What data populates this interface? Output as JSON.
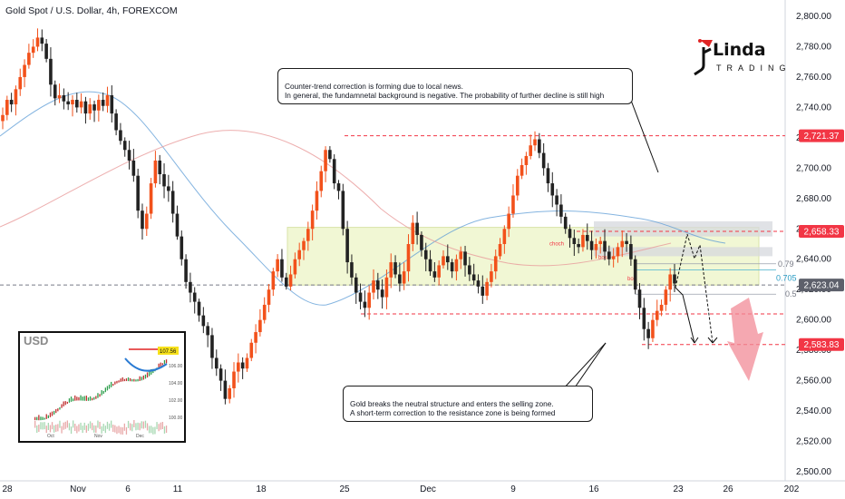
{
  "symbol_title": "Gold Spot / U.S. Dollar, 4h, FOREXCOM",
  "colors": {
    "up": "#f2511b",
    "down": "#222222",
    "ma_blue": "#5b9bd5",
    "ma_red": "#e89b9b",
    "resistance_zone": "#f1f7d4",
    "tag_red": "#f23645",
    "tag_gray": "#5d606b",
    "arrow_pink": "#f28b97"
  },
  "price_axis": {
    "ticks": [
      "2,800.00",
      "2,780.00",
      "2,760.00",
      "2,740.00",
      "2,720.00",
      "2,700.00",
      "2,680.00",
      "2,660.00",
      "2,640.00",
      "2,620.00",
      "2,600.00",
      "2,580.00",
      "2,560.00",
      "2,540.00",
      "2,520.00",
      "2,500.00"
    ],
    "tags": [
      {
        "label": "2,721.37",
        "value": 2721.37,
        "style": "red"
      },
      {
        "label": "2,658.33",
        "value": 2658.33,
        "style": "red"
      },
      {
        "label": "2,623.04",
        "value": 2623.04,
        "style": "gray"
      },
      {
        "label": "2,583.83",
        "value": 2583.83,
        "style": "red"
      }
    ]
  },
  "time_axis": {
    "ticks": [
      "28",
      "Nov",
      "6",
      "11",
      "18",
      "25",
      "Dec",
      "9",
      "16",
      "23",
      "26",
      "202"
    ]
  },
  "annotations": {
    "callout_top": "Counter-trend correction is forming due to local news.\nIn general, the fundamnetal background is negative. The probability of further decline is still high",
    "callout_bottom": "Gold breaks the neutral structure and enters the selling zone.\nA short-term correction to the resistance zone is being formed",
    "fib_079": "0.79",
    "fib_0705": "0.705",
    "fib_05": "0.5",
    "choch": "choch",
    "bos1": "bos",
    "bos2": "bos"
  },
  "logo": {
    "name": "Linda",
    "sub": "TRADING"
  },
  "inset": {
    "title": "USD",
    "price_label": "107.56",
    "y_ticks": [
      "106.00",
      "104.00",
      "102.00",
      "100.00"
    ],
    "x_ticks": [
      "Oct",
      "Nov",
      "Dec"
    ]
  },
  "chart_data": {
    "type": "candlestick",
    "symbol": "Gold Spot / U.S. Dollar",
    "timeframe": "4h",
    "ylim": [
      2500,
      2810
    ],
    "x_ticks": [
      "28",
      "Nov",
      "6",
      "11",
      "18",
      "25",
      "Dec",
      "9",
      "16",
      "23",
      "26",
      "202"
    ],
    "levels": [
      2721.37,
      2658.33,
      2623.04,
      2583.83
    ],
    "series_close_estimates": [
      2735,
      2745,
      2742,
      2752,
      2760,
      2768,
      2776,
      2780,
      2786,
      2782,
      2772,
      2755,
      2746,
      2748,
      2744,
      2742,
      2745,
      2740,
      2744,
      2736,
      2742,
      2738,
      2745,
      2741,
      2748,
      2736,
      2725,
      2718,
      2712,
      2705,
      2695,
      2672,
      2660,
      2670,
      2690,
      2705,
      2696,
      2688,
      2685,
      2670,
      2655,
      2640,
      2625,
      2618,
      2612,
      2603,
      2596,
      2590,
      2575,
      2568,
      2560,
      2548,
      2555,
      2566,
      2572,
      2568,
      2575,
      2585,
      2592,
      2600,
      2610,
      2620,
      2632,
      2640,
      2628,
      2622,
      2630,
      2640,
      2646,
      2652,
      2660,
      2672,
      2685,
      2698,
      2712,
      2706,
      2690,
      2685,
      2660,
      2638,
      2628,
      2618,
      2612,
      2608,
      2618,
      2626,
      2620,
      2615,
      2628,
      2638,
      2630,
      2624,
      2632,
      2650,
      2664,
      2656,
      2646,
      2640,
      2632,
      2628,
      2636,
      2642,
      2638,
      2632,
      2640,
      2645,
      2636,
      2630,
      2626,
      2622,
      2616,
      2625,
      2632,
      2642,
      2650,
      2660,
      2670,
      2682,
      2695,
      2702,
      2708,
      2715,
      2719,
      2710,
      2700,
      2690,
      2682,
      2676,
      2668,
      2660,
      2654,
      2650,
      2648,
      2656,
      2652,
      2646,
      2650,
      2652,
      2645,
      2640,
      2642,
      2648,
      2652,
      2650,
      2640,
      2620,
      2608,
      2594,
      2588,
      2600,
      2606,
      2610,
      2620,
      2630,
      2624
    ]
  }
}
